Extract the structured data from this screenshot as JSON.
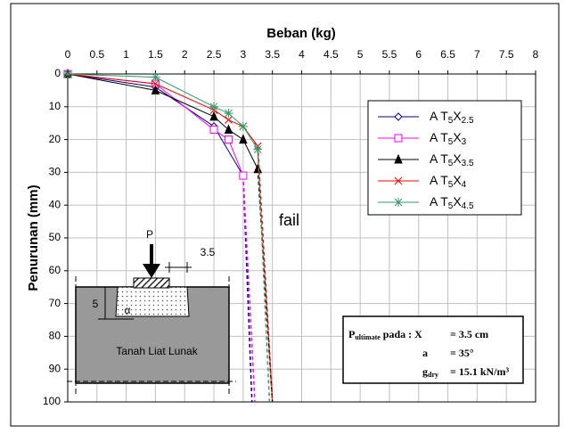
{
  "chart_data": {
    "type": "line",
    "title": "Beban (kg)",
    "y_label": "Penurunan (mm)",
    "xlim": [
      0,
      8
    ],
    "xticks": [
      0,
      0.5,
      1,
      1.5,
      2,
      2.5,
      3,
      3.5,
      4,
      4.5,
      5,
      5.5,
      6,
      6.5,
      7,
      7.5,
      8
    ],
    "ylim": [
      0,
      100
    ],
    "yticks": [
      0,
      10,
      20,
      30,
      40,
      50,
      60,
      70,
      80,
      90,
      100
    ],
    "y_inverted": true,
    "grid": true,
    "series": [
      {
        "name": "A T5X2.5",
        "color": "#000080",
        "marker": "diamond",
        "x": [
          0,
          1.5,
          2.5,
          3
        ],
        "values": [
          0,
          4,
          16,
          31
        ],
        "extension": {
          "x": [
            3,
            3.15
          ],
          "values": [
            31,
            100
          ]
        }
      },
      {
        "name": "A T5X3",
        "color": "#ff00ff",
        "marker": "square",
        "x": [
          0,
          1.5,
          2.5,
          2.75,
          3
        ],
        "values": [
          0,
          3,
          17,
          20,
          31
        ],
        "extension": {
          "x": [
            3,
            3.2
          ],
          "values": [
            31,
            100
          ]
        }
      },
      {
        "name": "A T5X3.5",
        "color": "#000000",
        "marker": "triangle",
        "x": [
          0,
          1.5,
          2.5,
          2.75,
          3,
          3.25
        ],
        "values": [
          0,
          5,
          13,
          17,
          20,
          29
        ],
        "extension": {
          "x": [
            3.25,
            3.5
          ],
          "values": [
            29,
            100
          ]
        }
      },
      {
        "name": "A T5X4",
        "color": "#ff0000",
        "marker": "x",
        "x": [
          0,
          1.5,
          2.5,
          2.75,
          3,
          3.25
        ],
        "values": [
          0,
          3,
          11,
          14,
          16,
          22
        ],
        "extension": {
          "x": [
            3.25,
            3.5
          ],
          "values": [
            22,
            100
          ]
        }
      },
      {
        "name": "A T5X4.5",
        "color": "#339966",
        "marker": "star",
        "x": [
          0,
          1.5,
          2.5,
          2.75,
          3,
          3.25
        ],
        "values": [
          0,
          1,
          10,
          12,
          16,
          23
        ],
        "extension": {
          "x": [
            3.25,
            3.45
          ],
          "values": [
            23,
            100
          ]
        }
      }
    ],
    "annotations": {
      "fail": "fail",
      "load": "P",
      "width": "3.5",
      "depth": "5",
      "angle": "α",
      "soil": "Tanah Liat Lunak"
    },
    "info_box": {
      "p": "P",
      "p_sub": "ultimate",
      "p_rest": " pada : X",
      "x_val": "= 3.5 cm",
      "a": "a",
      "a_val": "= 35°",
      "g": "g",
      "g_sub": "dry",
      "g_val": "= 15.1 kN/m³"
    }
  }
}
